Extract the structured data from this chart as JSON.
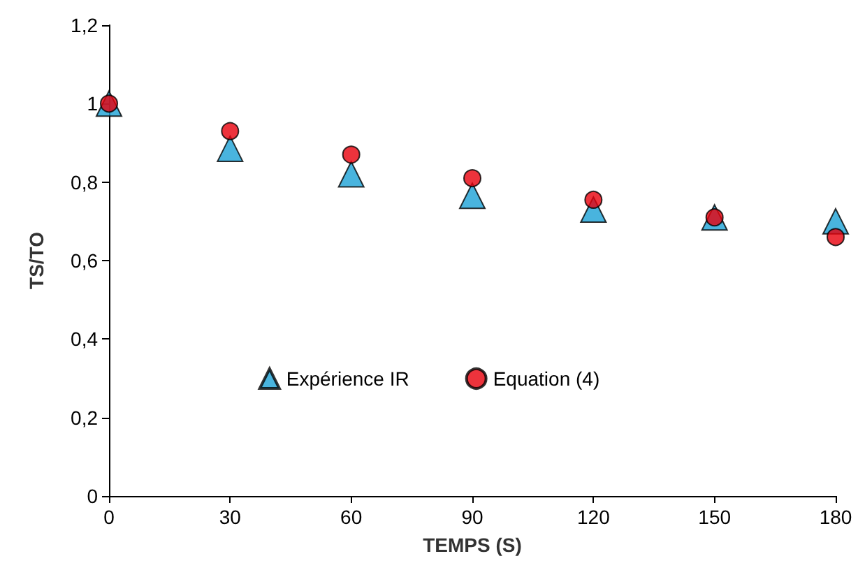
{
  "chart_data": {
    "type": "scatter",
    "xlabel": "TEMPS (S)",
    "ylabel": "TS/TO",
    "x": [
      0,
      30,
      60,
      90,
      120,
      150,
      180
    ],
    "series": [
      {
        "name": "Expérience IR",
        "color": "#1ba1d6",
        "marker": "triangle",
        "values": [
          1.0,
          0.885,
          0.82,
          0.765,
          0.73,
          0.71,
          0.7
        ]
      },
      {
        "name": "Equation (4)",
        "color": "#e8000b",
        "marker": "circle",
        "values": [
          1.0,
          0.93,
          0.87,
          0.81,
          0.755,
          0.71,
          0.66
        ]
      }
    ],
    "xlim": [
      0,
      180
    ],
    "xticks": [
      0,
      30,
      60,
      90,
      120,
      150,
      180
    ],
    "ylim": [
      0,
      1.2
    ],
    "yticks": [
      0,
      {
        "value": 0.2,
        "label": "0,2"
      },
      {
        "value": 0.4,
        "label": "0,4"
      },
      {
        "value": 0.6,
        "label": "0,6"
      },
      {
        "value": 0.8,
        "label": "0,8"
      },
      1,
      {
        "value": 1.2,
        "label": "1,2"
      }
    ],
    "grid": false,
    "legend": "bottom"
  }
}
